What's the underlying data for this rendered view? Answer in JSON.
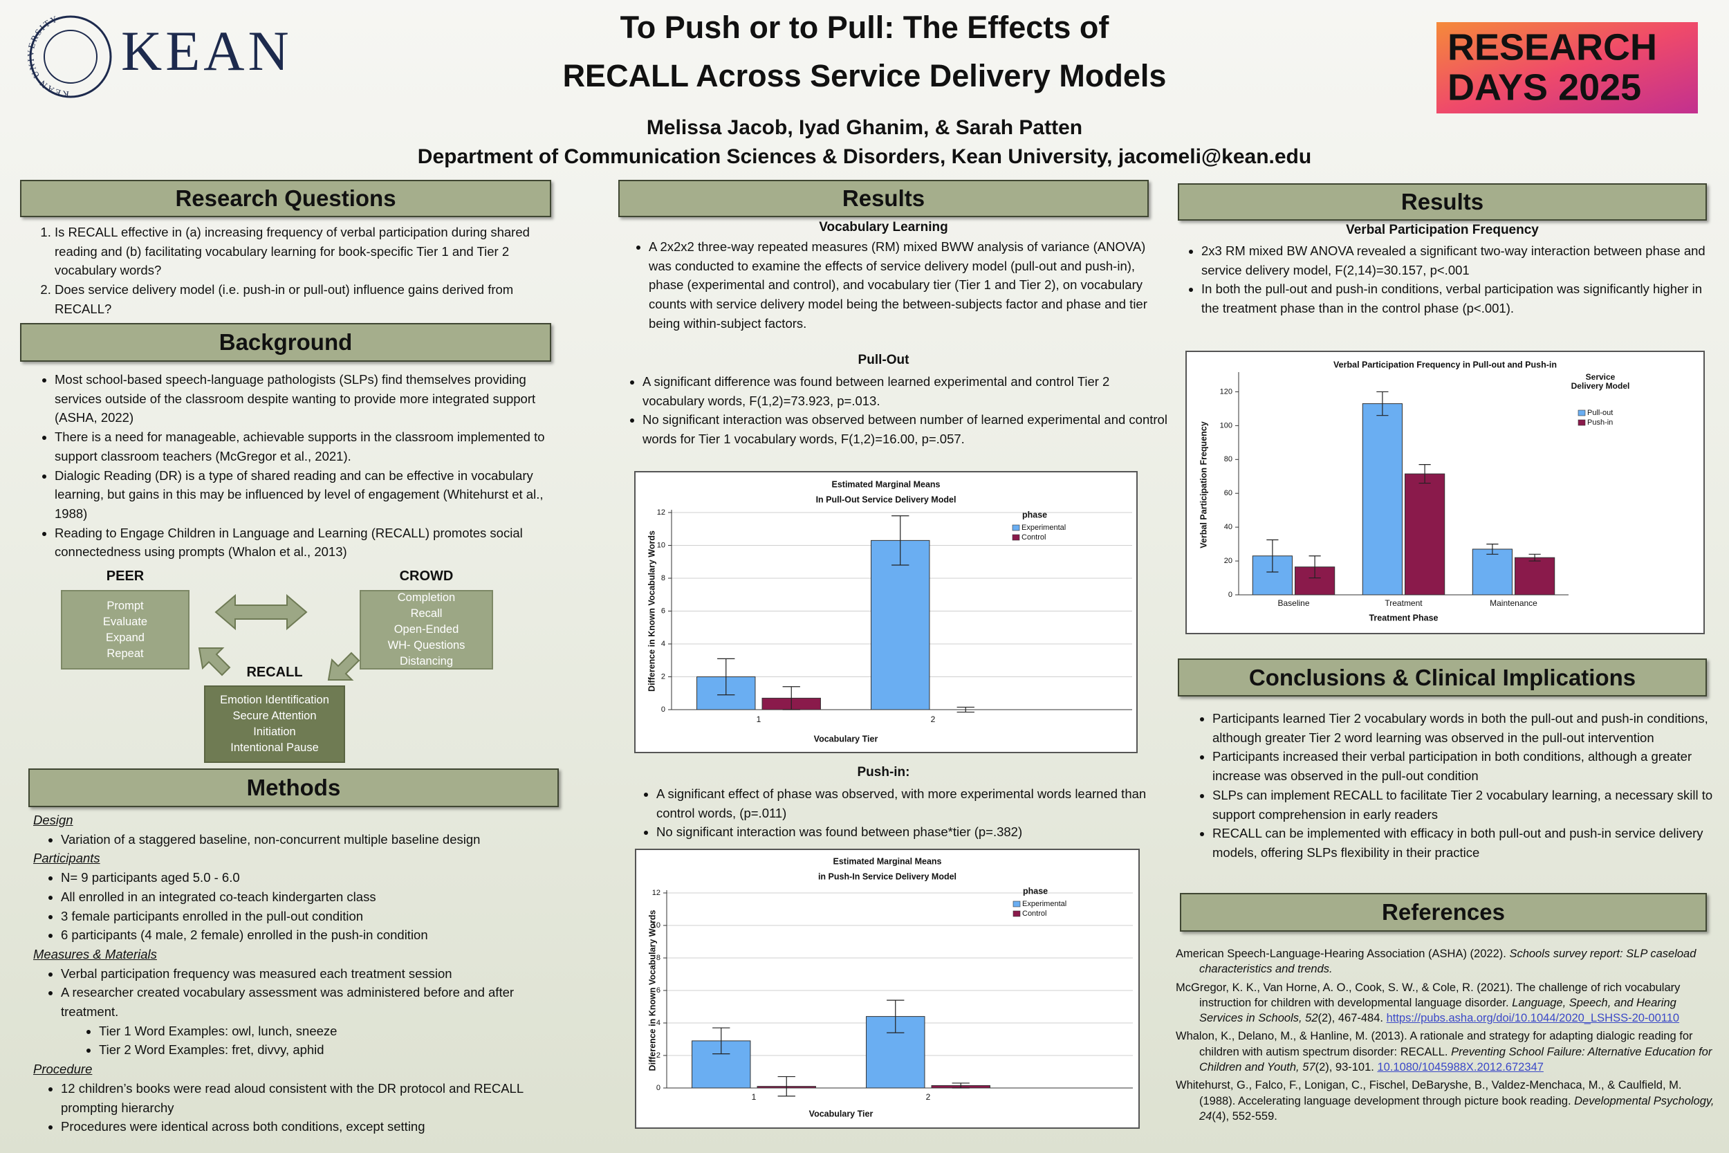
{
  "header": {
    "logo_text": "KEAN",
    "seal_text": "KEAN UNIVERSITY",
    "title_lines": [
      "To Push or to Pull: The Effects of",
      "RECALL Across Service Delivery Models"
    ],
    "authors": "Melissa Jacob, Iyad Ghanim, & Sarah Patten",
    "affiliation": "Department of Communication Sciences & Disorders, Kean University, jacomeli@kean.edu",
    "event_lines": [
      "RESEARCH",
      "DAYS 2025"
    ]
  },
  "research_questions": {
    "heading": "Research Questions",
    "items": [
      "Is RECALL effective in (a) increasing frequency of verbal participation during shared reading and (b) facilitating vocabulary learning for book-specific Tier 1 and Tier 2 vocabulary words?",
      "Does service delivery model (i.e. push-in or pull-out) influence gains derived from RECALL?"
    ]
  },
  "background": {
    "heading": "Background",
    "items": [
      "Most school-based speech-language pathologists (SLPs) find themselves providing services outside of the classroom despite wanting to provide more integrated support (ASHA, 2022)",
      "There is a need for manageable, achievable supports in the classroom implemented to support classroom teachers (McGregor et al., 2021).",
      "Dialogic Reading (DR) is a type of shared reading and can be effective in vocabulary learning, but gains in this may be influenced by level of engagement (Whitehurst et al., 1988)",
      "Reading to Engage Children in Language and Learning (RECALL) promotes social connectedness using prompts (Whalon et al., 2013)"
    ]
  },
  "diagram": {
    "peer": {
      "label": "PEER",
      "items": [
        "Prompt",
        "Evaluate",
        "Expand",
        "Repeat"
      ]
    },
    "crowd": {
      "label": "CROWD",
      "items": [
        "Completion",
        "Recall",
        "Open-Ended",
        "WH- Questions",
        "Distancing"
      ]
    },
    "recall": {
      "label": "RECALL",
      "items": [
        "Emotion Identification",
        "Secure Attention",
        "Initiation",
        "Intentional Pause"
      ]
    }
  },
  "methods": {
    "heading": "Methods",
    "design": {
      "label": "Design",
      "items": [
        "Variation of a staggered baseline, non-concurrent multiple baseline design"
      ]
    },
    "participants": {
      "label": "Participants",
      "items": [
        "N= 9 participants aged 5.0 - 6.0",
        "All enrolled in an integrated co-teach kindergarten class",
        "3 female participants enrolled in the pull-out condition",
        "6 participants (4 male, 2 female) enrolled in the push-in condition"
      ]
    },
    "measures": {
      "label": "Measures & Materials",
      "items": [
        "Verbal participation frequency was measured each treatment session",
        "A researcher created vocabulary assessment was administered before and after treatment."
      ],
      "subitems": [
        "Tier 1 Word Examples: owl, lunch, sneeze",
        "Tier 2 Word Examples: fret, divvy, aphid"
      ]
    },
    "procedure": {
      "label": "Procedure",
      "items": [
        "12 children’s books were read aloud consistent with the DR protocol and RECALL prompting hierarchy",
        "Procedures were identical across both conditions, except setting"
      ]
    }
  },
  "results_vocabulary": {
    "heading": "Results",
    "subheading": "Vocabulary Learning",
    "items": [
      "A 2x2x2 three-way repeated measures (RM) mixed BWW analysis of variance (ANOVA) was conducted to examine the effects of service delivery model (pull-out and push-in), phase (experimental and control), and vocabulary tier (Tier 1 and Tier 2), on vocabulary counts with service delivery model being the between-subjects factor and phase and tier being within-subject factors."
    ],
    "pull_out": {
      "label": "Pull-Out",
      "items": [
        "A significant difference was found between learned experimental and control Tier 2 vocabulary words,  F(1,2)=73.923, p=.013.",
        "No significant interaction was observed between number of learned experimental and control words for Tier 1 vocabulary words, F(1,2)=16.00, p=.057."
      ]
    },
    "push_in": {
      "label": "Push-in:",
      "items": [
        "A significant effect of phase was observed, with more experimental words learned than control words, (p=.011)",
        "No significant interaction was found between phase*tier (p=.382)"
      ]
    }
  },
  "results_participation": {
    "heading": "Results",
    "subheading": "Verbal Participation Frequency",
    "items": [
      "2x3 RM mixed BW ANOVA revealed a significant two-way interaction between phase and service delivery model, F(2,14)=30.157, p<.001",
      "In both the pull-out and push-in conditions, verbal participation was significantly higher in the treatment phase than in the control phase (p<.001)."
    ]
  },
  "conclusions": {
    "heading": "Conclusions & Clinical Implications",
    "items": [
      "Participants learned Tier 2 vocabulary words in both the pull-out and push-in conditions, although greater Tier 2 word learning was observed in the pull-out intervention",
      "Participants increased their verbal participation in both conditions, although a greater increase was observed in the pull-out condition",
      "SLPs can implement RECALL to facilitate Tier 2 vocabulary learning, a necessary skill to support comprehension in early readers",
      "RECALL can be implemented with efficacy in both pull-out and push-in service delivery models, offering SLPs flexibility in their practice"
    ]
  },
  "references": {
    "heading": "References",
    "items": [
      [
        "American Speech-Language-Hearing Association (ASHA) (2022). ",
        "Schools survey report: SLP caseload characteristics and trends."
      ],
      [
        "McGregor, K. K., Van Horne, A. O., Cook, S. W., & Cole, R. (2021). The challenge of rich vocabulary instruction for children with developmental language disorder. ",
        "Language, Speech, and Hearing Services in Schools, 52",
        "(2), 467-484. ",
        "https://pubs.asha.org/doi/10.1044/2020_LSHSS-20-00110"
      ],
      [
        "Whalon, K., Delano, M., & Hanline, M. (2013). A rationale and strategy for adapting dialogic reading for children with autism spectrum disorder: RECALL. ",
        "Preventing School Failure: Alternative Education for Children and Youth, 57",
        "(2), 93-101. ",
        "10.1080/1045988X.2012.672347"
      ],
      [
        "Whitehurst, G., Falco, F., Lonigan, C., Fischel, DeBaryshe, B., Valdez-Menchaca, M., &  Caulfield, M. (1988). Accelerating language development through picture book reading.  ",
        "Developmental Psychology, 24",
        "(4), 552-559."
      ]
    ]
  },
  "chart_data": [
    {
      "type": "bar",
      "title": "Estimated Marginal Means",
      "subtitle": "In Pull-Out Service Delivery Model",
      "x_label": "Vocabulary Tier",
      "y_label": "Difference in Known Vocabulary Words",
      "legend_title": "phase",
      "categories": [
        "1",
        "2"
      ],
      "series": [
        {
          "name": "Experimental",
          "color": "#6aaef2",
          "values": [
            2.0,
            10.3
          ],
          "errors": [
            1.1,
            1.5
          ]
        },
        {
          "name": "Control",
          "color": "#8a1a4b",
          "values": [
            0.7,
            0.0
          ],
          "errors": [
            0.7,
            0.15
          ]
        }
      ],
      "ylim": [
        0,
        12
      ],
      "yticks": [
        0,
        2,
        4,
        6,
        8,
        10,
        12
      ],
      "grid": true,
      "legend": "upper right"
    },
    {
      "type": "bar",
      "title": "Estimated Marginal Means",
      "subtitle": "in Push-In Service Delivery Model",
      "x_label": "Vocabulary Tier",
      "y_label": "Difference in Known Vocabulary Words",
      "legend_title": "phase",
      "categories": [
        "1",
        "2"
      ],
      "series": [
        {
          "name": "Experimental",
          "color": "#6aaef2",
          "values": [
            2.9,
            4.4
          ],
          "errors": [
            0.8,
            1.0
          ]
        },
        {
          "name": "Control",
          "color": "#8a1a4b",
          "values": [
            0.1,
            0.15
          ],
          "errors": [
            0.6,
            0.15
          ]
        }
      ],
      "ylim": [
        0,
        12
      ],
      "yticks": [
        0,
        2,
        4,
        6,
        8,
        10,
        12
      ],
      "grid": true,
      "legend": "upper right"
    },
    {
      "type": "bar",
      "title": "Verbal Participation Frequency in Pull-out and Push-in",
      "x_label": "Treatment Phase",
      "y_label": "Verbal Participation Frequency",
      "legend_title": "Service Delivery Model",
      "categories": [
        "Baseline",
        "Treatment",
        "Maintenance"
      ],
      "series": [
        {
          "name": "Pull-out",
          "color": "#6aaef2",
          "values": [
            23,
            113,
            27
          ],
          "errors": [
            9.5,
            7,
            3
          ]
        },
        {
          "name": "Push-in",
          "color": "#8a1a4b",
          "values": [
            16.5,
            71.5,
            22
          ],
          "errors": [
            6.5,
            5.5,
            2
          ]
        }
      ],
      "ylim": [
        0,
        130
      ],
      "yticks": [
        0,
        20,
        40,
        60,
        80,
        100,
        120
      ],
      "grid": false,
      "legend": "upper right"
    }
  ]
}
